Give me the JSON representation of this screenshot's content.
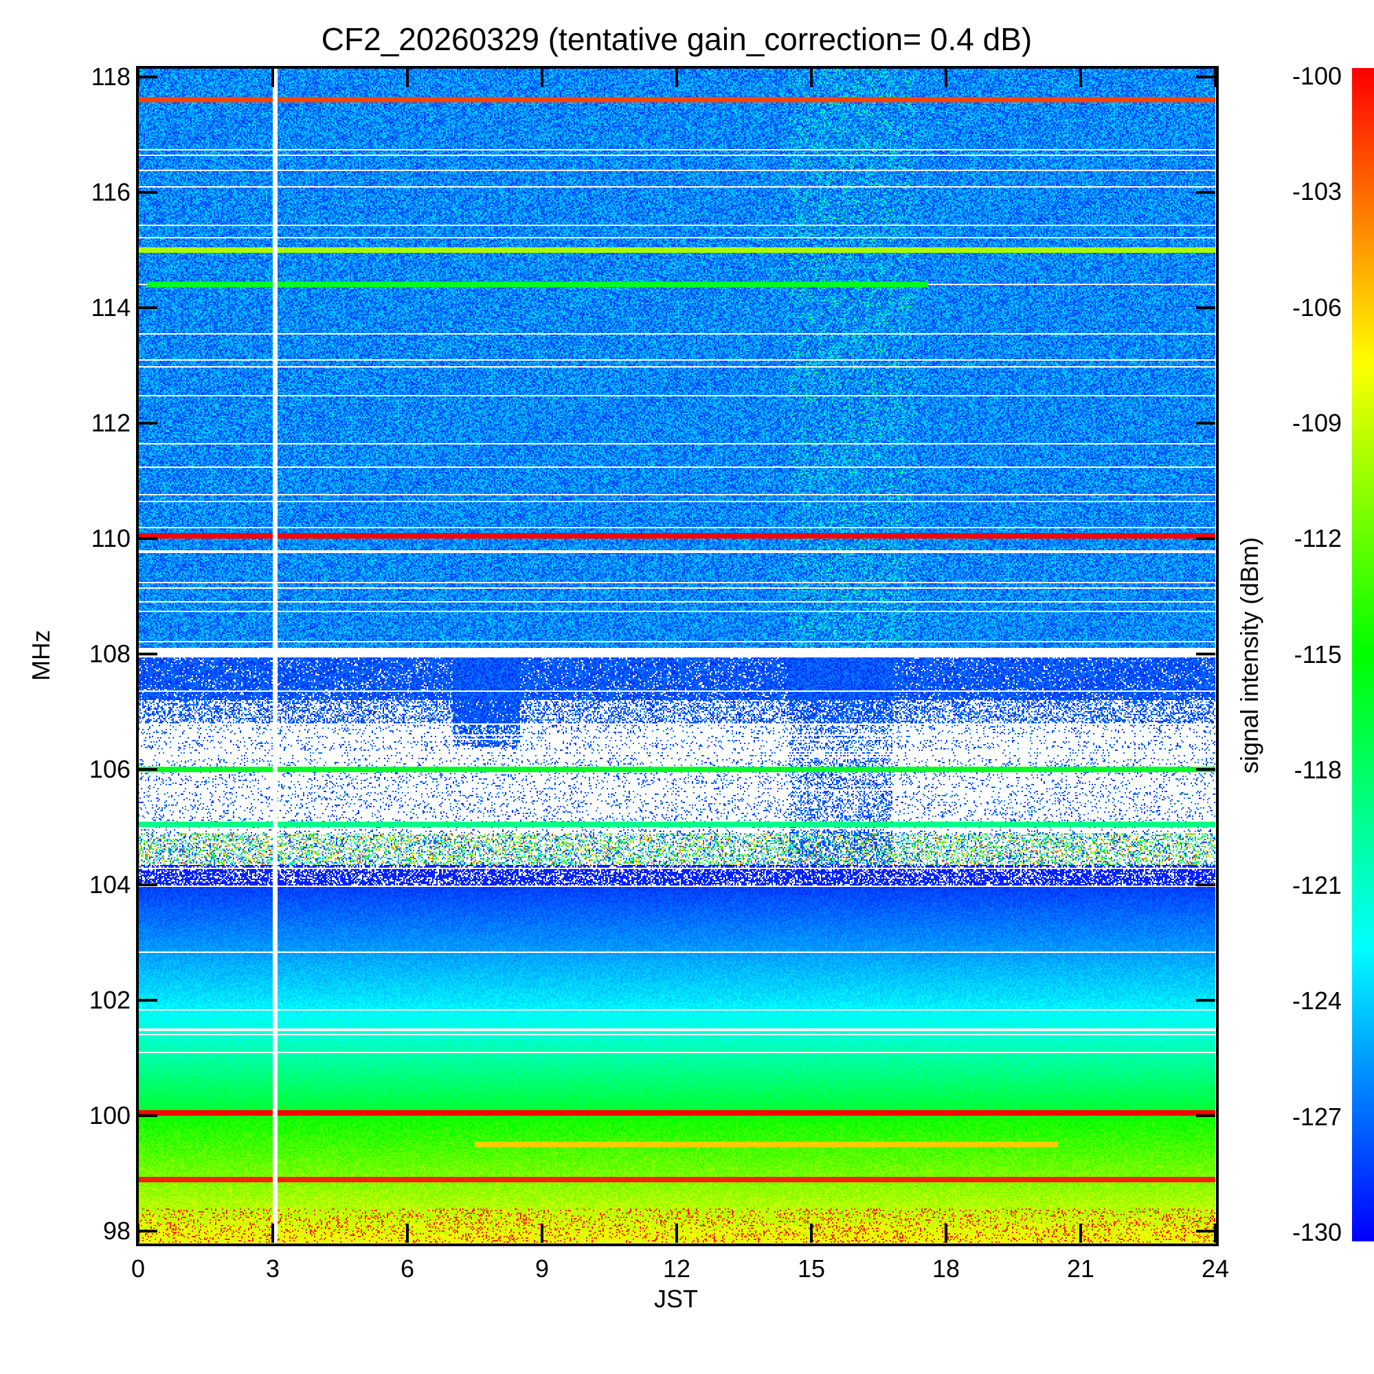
{
  "chart_data": {
    "type": "heatmap",
    "title": "CF2_20260329 (tentative gain_correction=  0.4 dB)",
    "xlabel": "JST",
    "ylabel": "MHz",
    "colorbar_label": "signal intensity (dBm)",
    "xlim": [
      0,
      24
    ],
    "ylim": [
      97.8,
      118.15
    ],
    "x_ticks": [
      "0",
      "3",
      "6",
      "9",
      "12",
      "15",
      "18",
      "21",
      "24"
    ],
    "y_ticks": [
      "98",
      "100",
      "102",
      "104",
      "106",
      "108",
      "110",
      "112",
      "114",
      "116",
      "118"
    ],
    "colorbar_range": [
      -130,
      -100
    ],
    "colorbar_ticks": [
      "-100",
      "-103",
      "-106",
      "-109",
      "-112",
      "-115",
      "-118",
      "-121",
      "-124",
      "-127",
      "-130"
    ],
    "colormap": [
      "#0000ff",
      "#00ffff",
      "#00ff00",
      "#ffff00",
      "#ff0000"
    ],
    "data_gap": {
      "time_start": 3.0,
      "time_end": 3.08
    },
    "regions": [
      {
        "freq": [
          108.1,
          118.15
        ],
        "level": -127,
        "note": "noisy background"
      },
      {
        "freq": [
          104.0,
          108.0
        ],
        "level": null,
        "note": "mostly blank with sparse detections"
      },
      {
        "freq": [
          102.0,
          104.0
        ],
        "level_top": -129,
        "level_bottom": -124
      },
      {
        "freq": [
          100.0,
          102.0
        ],
        "level_top": -124,
        "level_bottom": -117
      },
      {
        "freq": [
          97.8,
          100.0
        ],
        "level_top": -116,
        "level_bottom": -109
      }
    ],
    "lines": [
      {
        "freq": 117.6,
        "level": -102,
        "time": [
          0,
          24
        ]
      },
      {
        "freq": 115.0,
        "level": -110,
        "time": [
          0,
          24
        ]
      },
      {
        "freq": 114.4,
        "level": -116,
        "time": [
          0.2,
          17.6
        ]
      },
      {
        "freq": 110.05,
        "level": -100,
        "time": [
          0,
          24
        ]
      },
      {
        "freq": 106.0,
        "level": -116,
        "time": [
          0,
          24
        ]
      },
      {
        "freq": 105.05,
        "level": -119,
        "time": [
          0,
          24
        ]
      },
      {
        "freq": 100.05,
        "level": -100,
        "time": [
          0,
          24
        ]
      },
      {
        "freq": 99.5,
        "level": -106,
        "time": [
          7.5,
          20.5
        ]
      },
      {
        "freq": 98.9,
        "level": -101,
        "time": [
          0,
          24
        ]
      }
    ]
  }
}
